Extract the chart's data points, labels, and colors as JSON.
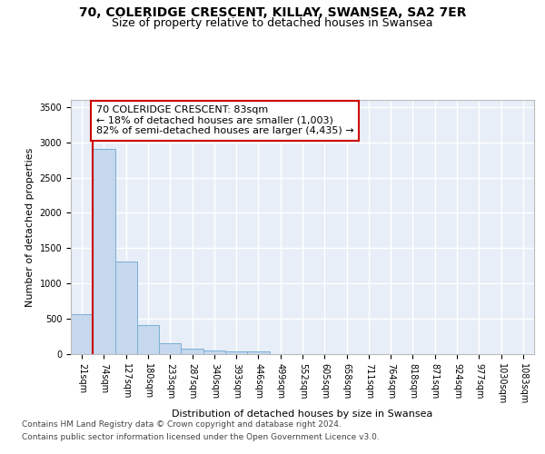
{
  "title_line1": "70, COLERIDGE CRESCENT, KILLAY, SWANSEA, SA2 7ER",
  "title_line2": "Size of property relative to detached houses in Swansea",
  "xlabel": "Distribution of detached houses by size in Swansea",
  "ylabel": "Number of detached properties",
  "categories": [
    "21sqm",
    "74sqm",
    "127sqm",
    "180sqm",
    "233sqm",
    "287sqm",
    "340sqm",
    "393sqm",
    "446sqm",
    "499sqm",
    "552sqm",
    "605sqm",
    "658sqm",
    "711sqm",
    "764sqm",
    "818sqm",
    "871sqm",
    "924sqm",
    "977sqm",
    "1030sqm",
    "1083sqm"
  ],
  "values": [
    570,
    2910,
    1310,
    410,
    155,
    80,
    48,
    42,
    42,
    0,
    0,
    0,
    0,
    0,
    0,
    0,
    0,
    0,
    0,
    0,
    0
  ],
  "bar_color": "#c5d8ee",
  "bar_edge_color": "#7aafd4",
  "vline_color": "#cc0000",
  "annotation_line1": "70 COLERIDGE CRESCENT: 83sqm",
  "annotation_line2": "← 18% of detached houses are smaller (1,003)",
  "annotation_line3": "82% of semi-detached houses are larger (4,435) →",
  "annotation_box_facecolor": "#ffffff",
  "annotation_box_edgecolor": "#cc0000",
  "ylim": [
    0,
    3600
  ],
  "yticks": [
    0,
    500,
    1000,
    1500,
    2000,
    2500,
    3000,
    3500
  ],
  "background_color": "#e8eef8",
  "grid_color": "#ffffff",
  "footer_line1": "Contains HM Land Registry data © Crown copyright and database right 2024.",
  "footer_line2": "Contains public sector information licensed under the Open Government Licence v3.0.",
  "title_fontsize": 10,
  "subtitle_fontsize": 9,
  "axis_label_fontsize": 8,
  "tick_fontsize": 7,
  "annotation_fontsize": 8,
  "footer_fontsize": 6.5
}
